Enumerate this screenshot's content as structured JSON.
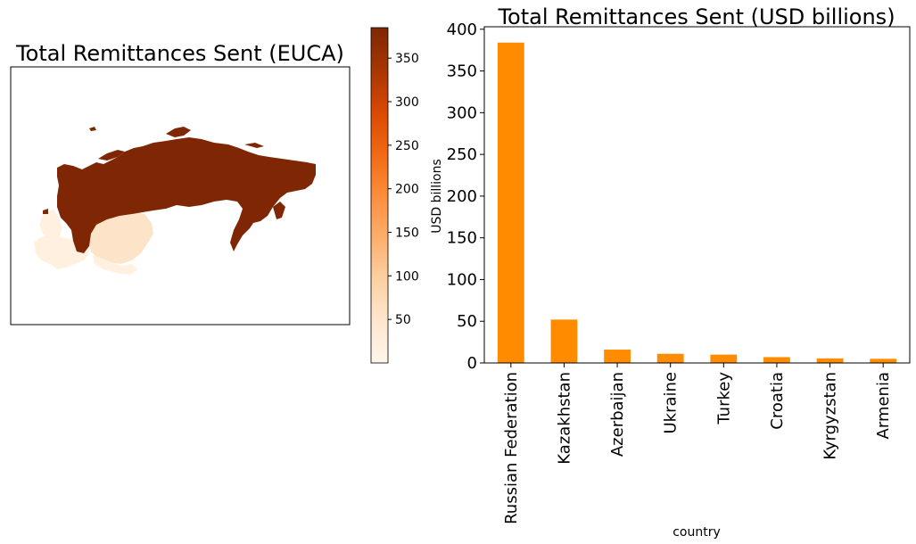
{
  "chart_data": [
    {
      "type": "choropleth-map",
      "title": "Total Remittances Sent (EUCA)",
      "colormap": "Oranges",
      "colorbar": {
        "label": "USD billions",
        "range": [
          0,
          385
        ],
        "ticks": [
          "50",
          "100",
          "150",
          "200",
          "250",
          "300",
          "350"
        ],
        "tick_values": [
          50,
          100,
          150,
          200,
          250,
          300,
          350
        ]
      },
      "regions": [
        {
          "name": "Russian Federation",
          "value": 384.0
        },
        {
          "name": "Kazakhstan",
          "value": 52.0
        },
        {
          "name": "Azerbaijan",
          "value": 16.0
        },
        {
          "name": "Ukraine",
          "value": 11.0
        },
        {
          "name": "Turkey",
          "value": 10.0
        },
        {
          "name": "Kyrgyzstan",
          "value": 5.5
        },
        {
          "name": "Armenia",
          "value": 5.0
        }
      ]
    },
    {
      "type": "bar",
      "title": "Total Remittances Sent (USD billions)",
      "xlabel": "country",
      "ylabel": "USD billions",
      "categories": [
        "Russian Federation",
        "Kazakhstan",
        "Azerbaijan",
        "Ukraine",
        "Turkey",
        "Croatia",
        "Kyrgyzstan",
        "Armenia"
      ],
      "values": [
        384,
        52,
        16,
        11,
        10,
        7,
        5.5,
        5
      ],
      "ylim": [
        0,
        403
      ],
      "yticks": [
        0,
        50,
        100,
        150,
        200,
        250,
        300,
        350,
        400
      ],
      "color": "#ff8c00"
    }
  ]
}
